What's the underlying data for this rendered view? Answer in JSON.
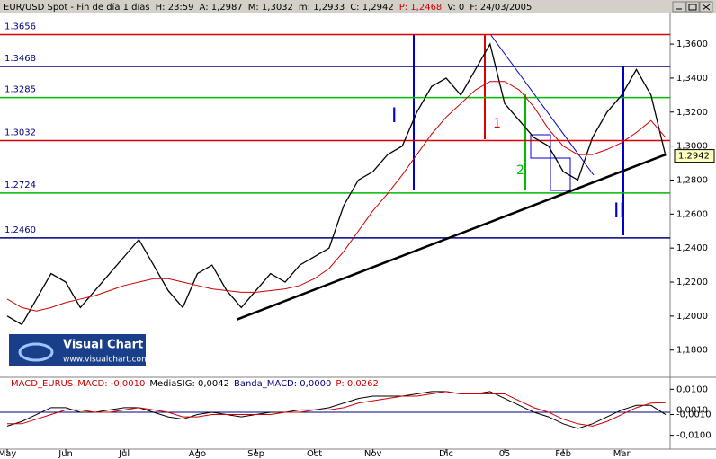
{
  "header": [
    {
      "text": "EUR/USD Spot - Fin de día 1 días",
      "color": "#000000"
    },
    {
      "text": "H: 23:59",
      "color": "#000000"
    },
    {
      "text": "A: 1,2987",
      "color": "#000000"
    },
    {
      "text": "M: 1,3032",
      "color": "#000000"
    },
    {
      "text": "m: 1,2933",
      "color": "#000000"
    },
    {
      "text": "C: 1,2942",
      "color": "#000000"
    },
    {
      "text": "P: 1,2468",
      "color": "#cc0000"
    },
    {
      "text": "V: 0",
      "color": "#000000"
    },
    {
      "text": "F: 24/03/2005",
      "color": "#000000"
    }
  ],
  "logo": {
    "title": "Visual Chart",
    "url": "www.visualchart.com"
  },
  "chart_data": [
    {
      "type": "line",
      "categories": [
        "May",
        null,
        null,
        null,
        "Jun",
        null,
        null,
        null,
        "Jul",
        null,
        null,
        null,
        null,
        "Ago",
        null,
        null,
        null,
        "Sep",
        null,
        null,
        null,
        "Oct",
        null,
        null,
        null,
        "Nov",
        null,
        null,
        null,
        null,
        "Dic",
        null,
        null,
        null,
        "05",
        null,
        null,
        null,
        "Feb",
        null,
        null,
        null,
        "Mar",
        null,
        null,
        null
      ],
      "series": [
        {
          "color": "#000000",
          "values": [
            1.2,
            1.195,
            1.21,
            1.225,
            1.22,
            1.205,
            1.215,
            1.225,
            1.235,
            1.245,
            1.23,
            1.215,
            1.205,
            1.225,
            1.23,
            1.215,
            1.205,
            1.215,
            1.225,
            1.22,
            1.23,
            1.235,
            1.24,
            1.265,
            1.28,
            1.285,
            1.295,
            1.3,
            1.32,
            1.335,
            1.34,
            1.33,
            1.345,
            1.36,
            1.325,
            1.315,
            1.305,
            1.3,
            1.285,
            1.28,
            1.305,
            1.32,
            1.33,
            1.345,
            1.33,
            1.2942
          ]
        },
        {
          "color": "#cc0000",
          "values": [
            1.21,
            1.205,
            1.203,
            1.205,
            1.208,
            1.21,
            1.212,
            1.215,
            1.218,
            1.22,
            1.222,
            1.222,
            1.22,
            1.218,
            1.216,
            1.215,
            1.214,
            1.214,
            1.215,
            1.216,
            1.218,
            1.222,
            1.228,
            1.238,
            1.25,
            1.262,
            1.272,
            1.283,
            1.295,
            1.307,
            1.317,
            1.325,
            1.333,
            1.338,
            1.338,
            1.333,
            1.323,
            1.31,
            1.3,
            1.295,
            1.295,
            1.298,
            1.302,
            1.308,
            1.315,
            1.305
          ]
        }
      ],
      "levels": [
        {
          "value": 1.3656,
          "label": "1.3656",
          "color": "#dd0000"
        },
        {
          "value": 1.3468,
          "label": "1.3468",
          "color": "#000080"
        },
        {
          "value": 1.3285,
          "label": "1.3285",
          "color": "#00bb00"
        },
        {
          "value": 1.3032,
          "label": "1.3032",
          "color": "#dd0000"
        },
        {
          "value": 1.2724,
          "label": "1.2724",
          "color": "#00bb00"
        },
        {
          "value": 1.246,
          "label": "1.2460",
          "color": "#000080"
        }
      ],
      "trendline": {
        "x": [
          15.7,
          45
        ],
        "values": [
          1.198,
          1.295
        ]
      },
      "last_value": {
        "value": 1.2942,
        "label": "1,2942"
      },
      "annotations": [
        "I",
        "II",
        "1",
        "2"
      ],
      "ylim": [
        1.164,
        1.378
      ],
      "yticks": [
        {
          "value": 1.18,
          "label": "1,1800"
        },
        {
          "value": 1.2,
          "label": "1,2000"
        },
        {
          "value": 1.22,
          "label": "1,2200"
        },
        {
          "value": 1.24,
          "label": "1,2400"
        },
        {
          "value": 1.26,
          "label": "1,2600"
        },
        {
          "value": 1.28,
          "label": "1,2800"
        },
        {
          "value": 1.3,
          "label": "1,3000"
        },
        {
          "value": 1.32,
          "label": "1,3200"
        },
        {
          "value": 1.34,
          "label": "1,3400"
        },
        {
          "value": 1.36,
          "label": "1,3600"
        }
      ]
    },
    {
      "type": "line",
      "title": [
        {
          "text": "MACD_EURUS",
          "color": "#cc0000"
        },
        {
          "text": "MACD: -0,0010",
          "color": "#cc0000"
        },
        {
          "text": "MediaSIG: 0,0042",
          "color": "#000000"
        },
        {
          "text": "Banda_MACD: 0,0000",
          "color": "#000080"
        },
        {
          "text": "P: 0,0262",
          "color": "#cc0000"
        }
      ],
      "series": [
        {
          "color": "#000000",
          "values": [
            -0.006,
            -0.004,
            -0.001,
            0.002,
            0.002,
            0.0,
            0.0,
            0.001,
            0.002,
            0.002,
            0.0,
            -0.002,
            -0.003,
            -0.001,
            0.0,
            -0.001,
            -0.002,
            -0.001,
            0.0,
            0.0,
            0.001,
            0.001,
            0.002,
            0.004,
            0.006,
            0.007,
            0.007,
            0.007,
            0.008,
            0.009,
            0.009,
            0.008,
            0.008,
            0.009,
            0.006,
            0.003,
            0.0,
            -0.002,
            -0.005,
            -0.007,
            -0.005,
            -0.002,
            0.001,
            0.003,
            0.003,
            -0.001
          ]
        },
        {
          "color": "#cc0000",
          "values": [
            -0.005,
            -0.005,
            -0.003,
            -0.001,
            0.001,
            0.001,
            0.0,
            0.0,
            0.001,
            0.002,
            0.001,
            0.0,
            -0.002,
            -0.002,
            -0.001,
            -0.001,
            -0.001,
            -0.001,
            -0.001,
            0.0,
            0.0,
            0.001,
            0.001,
            0.002,
            0.004,
            0.005,
            0.006,
            0.007,
            0.007,
            0.008,
            0.009,
            0.008,
            0.008,
            0.008,
            0.008,
            0.005,
            0.002,
            0.0,
            -0.003,
            -0.005,
            -0.006,
            -0.004,
            -0.001,
            0.002,
            0.004,
            0.0042
          ]
        }
      ],
      "band": 0,
      "ylim": [
        -0.016,
        0.0152
      ],
      "yticks": [
        {
          "value": 0.01,
          "label": "0,0100"
        },
        {
          "value": 0.001,
          "label": "0,0010"
        },
        {
          "value": -0.001,
          "label": "-0,0010"
        },
        {
          "value": -0.01,
          "label": "-0,0100"
        }
      ]
    }
  ]
}
